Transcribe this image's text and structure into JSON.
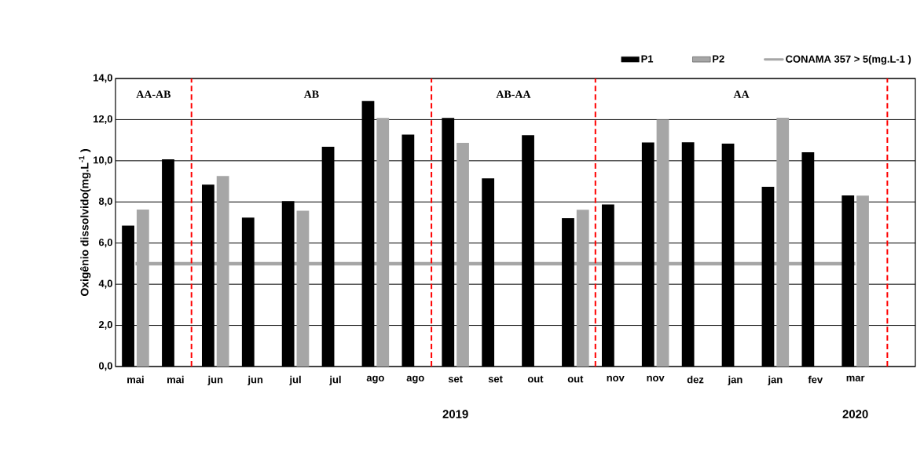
{
  "chart_data": {
    "type": "bar",
    "ylabel": "Oxigênio dissolvido(mg.L$^{-1}$ )",
    "categories": [
      "mai",
      "mai",
      "jun",
      "jun",
      "jul",
      "jul",
      "ago",
      "ago",
      "set",
      "set",
      "out",
      "out",
      "nov",
      "nov",
      "dez",
      "jan",
      "jan",
      "fev",
      "mar",
      null
    ],
    "series": [
      {
        "name": "P1",
        "color": "#000000",
        "values": [
          6.85,
          10.07,
          8.84,
          7.24,
          8.04,
          10.68,
          12.9,
          11.27,
          12.08,
          9.15,
          11.24,
          7.21,
          7.88,
          10.89,
          10.9,
          10.83,
          8.74,
          10.41,
          8.32,
          null
        ]
      },
      {
        "name": "P2",
        "color": "#a6a6a6",
        "values": [
          7.63,
          null,
          9.26,
          null,
          7.57,
          null,
          12.08,
          null,
          10.87,
          null,
          null,
          7.62,
          null,
          12.0,
          null,
          null,
          12.09,
          null,
          8.31,
          null
        ]
      },
      {
        "name": "CONAMA 357 > 5(mg.L-1  )",
        "type": "line",
        "color": "#a6a6a6",
        "values": [
          5,
          5,
          5,
          5,
          5,
          5,
          5,
          5,
          5,
          5,
          5,
          5,
          5,
          5,
          5,
          5,
          5,
          5,
          5,
          null
        ]
      }
    ],
    "ylim": [
      0,
      14
    ],
    "yticks": [
      {
        "value": 0,
        "label": "0,0"
      },
      {
        "value": 2,
        "label": "2,0"
      },
      {
        "value": 4,
        "label": "4,0"
      },
      {
        "value": 6,
        "label": "6,0"
      },
      {
        "value": 8,
        "label": "8,0"
      },
      {
        "value": 10,
        "label": "10,0"
      },
      {
        "value": 12,
        "label": "12,0"
      },
      {
        "value": 14,
        "label": "14,0"
      }
    ],
    "grid": "y",
    "legend": "top right",
    "annotations": [
      "AA-AB",
      "AB",
      "AB-AA",
      "AA",
      "2019",
      "2020"
    ]
  }
}
